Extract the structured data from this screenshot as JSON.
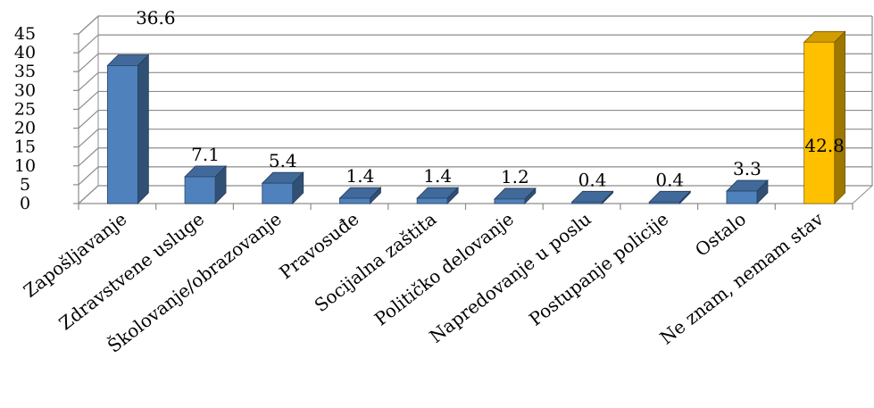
{
  "chart_data": {
    "type": "bar",
    "categories": [
      "Zapošljavanje",
      "Zdravstvene usluge",
      "Školovanje/obrazovanje",
      "Pravosuđe",
      "Socijalna zaštita",
      "Političko delovanje",
      "Napredovanje u poslu",
      "Postupanje policije",
      "Ostalo",
      "Ne znam, nemam stav"
    ],
    "values": [
      36.6,
      7.1,
      5.4,
      1.4,
      1.4,
      1.2,
      0.4,
      0.4,
      3.3,
      42.8
    ],
    "data_labels": [
      "36.6",
      "7.1",
      "5.4",
      "1.4",
      "1.4",
      "1.2",
      "0.4",
      "0.4",
      "3.3",
      "42.8"
    ],
    "ylim": [
      0,
      45
    ],
    "yticks": [
      "0",
      "5",
      "10",
      "15",
      "20",
      "25",
      "30",
      "35",
      "40",
      "45"
    ],
    "grid": true,
    "style": "3d",
    "colors": {
      "default_bar": "#4F81BD",
      "highlight_bar": "#FFC000"
    },
    "highlight_index": 9
  }
}
